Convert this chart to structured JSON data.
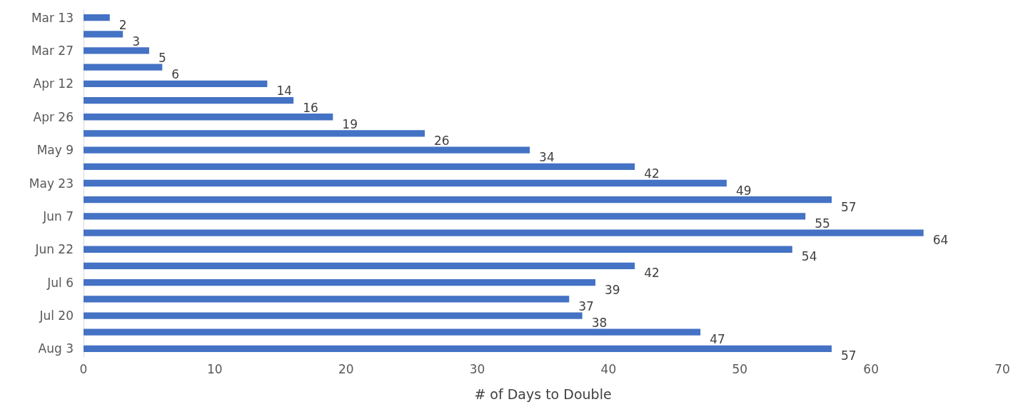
{
  "chart_data": {
    "type": "bar",
    "orientation": "horizontal",
    "xlabel": "# of Days to Double",
    "categories": [
      "Mar 13",
      null,
      "Mar 27",
      null,
      "Apr 12",
      null,
      "Apr 26",
      null,
      "May 9",
      null,
      "May 23",
      null,
      "Jun 7",
      null,
      "Jun 22",
      null,
      "Jul 6",
      null,
      "Jul 20",
      null,
      "Aug 3"
    ],
    "values": [
      2,
      3,
      5,
      6,
      14,
      16,
      19,
      26,
      34,
      42,
      49,
      57,
      55,
      64,
      54,
      42,
      39,
      37,
      38,
      47,
      57
    ],
    "color": "#4472c4",
    "xlim": [
      0,
      70
    ],
    "xticks": [
      0,
      10,
      20,
      30,
      40,
      50,
      60,
      70
    ],
    "grid": false,
    "data_labels": true
  }
}
